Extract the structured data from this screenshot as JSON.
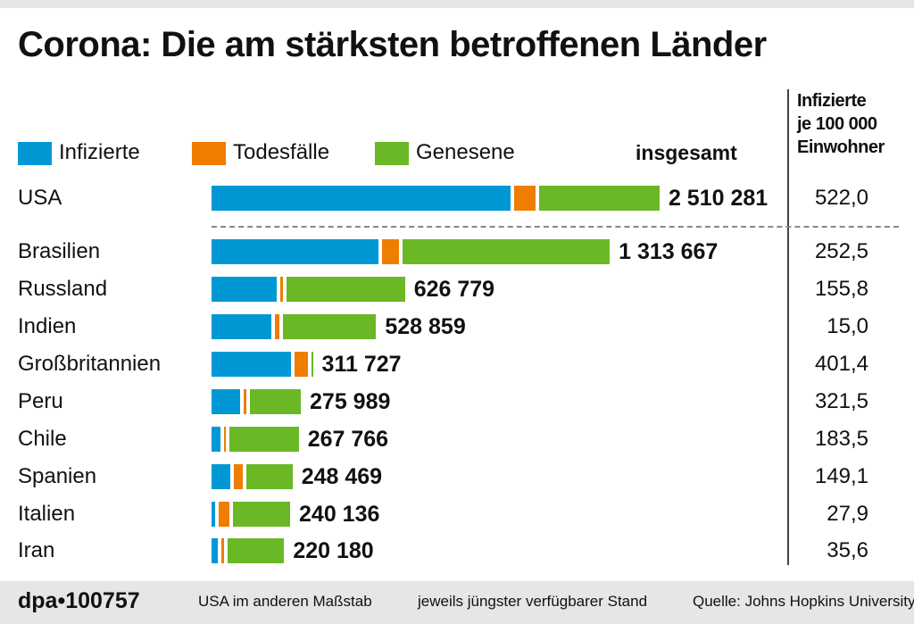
{
  "title": "Corona: Die am stärksten betroffenen Länder",
  "legend": [
    {
      "label": "Infizierte",
      "color": "#0098d4"
    },
    {
      "label": "Todesfälle",
      "color": "#ee7d00"
    },
    {
      "label": "Genesene",
      "color": "#6ab825"
    }
  ],
  "total_header": "insgesamt",
  "rate_header": [
    "Infizierte",
    "je 100 000",
    "Einwohner"
  ],
  "footer": {
    "logo": "dpa•100757",
    "note1": "USA im anderen Maßstab",
    "note2": "jeweils jüngster verfügbarer Stand",
    "source": "Quelle: Johns Hopkins University"
  },
  "chart_data": {
    "type": "bar",
    "stacked": true,
    "orientation": "horizontal",
    "title": "Corona: Die am stärksten betroffenen Länder",
    "categories": [
      "USA",
      "Brasilien",
      "Russland",
      "Indien",
      "Großbritannien",
      "Peru",
      "Chile",
      "Spanien",
      "Italien",
      "Iran"
    ],
    "totals": [
      "2 510 281",
      "1 313 667",
      "626 779",
      "528 859",
      "311 727",
      "275 989",
      "267 766",
      "248 469",
      "240 136",
      "220 180"
    ],
    "series": [
      {
        "name": "Infizierte",
        "color": "#0098d4",
        "values": [
          1700000,
          560000,
          219000,
          200000,
          267000,
          96000,
          31000,
          64000,
          13000,
          21000
        ]
      },
      {
        "name": "Todesfälle",
        "color": "#ee7d00",
        "values": [
          125000,
          57000,
          9000,
          16000,
          43600,
          9000,
          5000,
          28000,
          35000,
          10000
        ]
      },
      {
        "name": "Genesene",
        "color": "#6ab825",
        "values": [
          685000,
          697000,
          398000,
          313000,
          1100,
          171000,
          232000,
          156000,
          192000,
          189000
        ]
      }
    ],
    "rates": [
      "522,0",
      "252,5",
      "155,8",
      "15,0",
      "401,4",
      "321,5",
      "183,5",
      "149,1",
      "27,9",
      "35,6"
    ],
    "notes": "USA im anderen Maßstab"
  }
}
